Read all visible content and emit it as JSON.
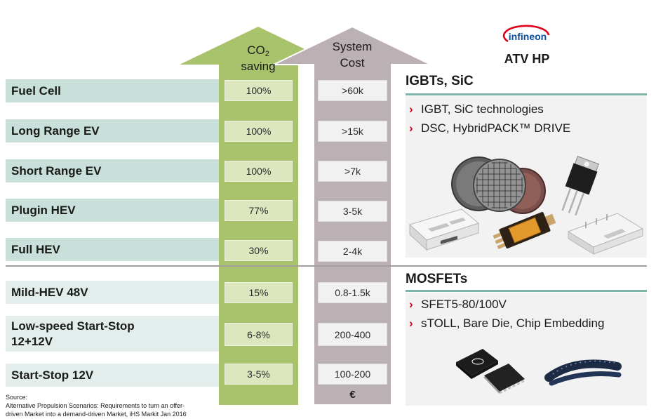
{
  "header": {
    "co2": {
      "label": "CO",
      "subscript": "2",
      "line2": "saving"
    },
    "cost": {
      "line1": "System",
      "line2": "Cost"
    }
  },
  "logo": {
    "text": "infineon"
  },
  "title": "ATV HP",
  "rows": [
    {
      "label_lines": [
        "Fuel Cell"
      ],
      "co2_saving": "100%",
      "system_cost": ">60k"
    },
    {
      "label_lines": [
        "Long Range EV"
      ],
      "co2_saving": "100%",
      "system_cost": ">15k"
    },
    {
      "label_lines": [
        "Short Range EV"
      ],
      "co2_saving": "100%",
      "system_cost": ">7k"
    },
    {
      "label_lines": [
        "Plugin HEV"
      ],
      "co2_saving": "77%",
      "system_cost": "3-5k"
    },
    {
      "label_lines": [
        "Full HEV"
      ],
      "co2_saving": "30%",
      "system_cost": "2-4k"
    },
    {
      "label_lines": [
        "Mild-HEV 48V"
      ],
      "co2_saving": "15%",
      "system_cost": "0.8-1.5k"
    },
    {
      "label_lines": [
        "Low-speed Start-Stop",
        "12+12V"
      ],
      "co2_saving": "6-8%",
      "system_cost": "200-400"
    },
    {
      "label_lines": [
        "Start-Stop 12V"
      ],
      "co2_saving": "3-5%",
      "system_cost": "100-200"
    }
  ],
  "cost_currency": "€",
  "panels": [
    {
      "heading": "IGBTs, SiC",
      "bullets": [
        "IGBT, SiC technologies",
        "DSC, HybridPACK™ DRIVE"
      ]
    },
    {
      "heading": "MOSFETs",
      "bullets": [
        "SFET5-80/100V",
        "sTOLL, Bare Die, Chip Embedding"
      ]
    }
  ],
  "source": {
    "label": "Source:",
    "lines": [
      "Alternative Propulsion Scenarios: Requirements to turn an offer-",
      "driven Market into a demand-driven Market, iHS Markit Jan 2016"
    ]
  },
  "colors": {
    "co2_arrow": "#a8c36b",
    "cost_arrow": "#bbb1b4",
    "label_band": "#c8dfda",
    "label_band_light": "#e3eeec",
    "accent_line": "#7fb4a9",
    "bullet_marker": "#d2001e",
    "logo_red": "#e3001b",
    "logo_blue": "#0a4d9e"
  }
}
